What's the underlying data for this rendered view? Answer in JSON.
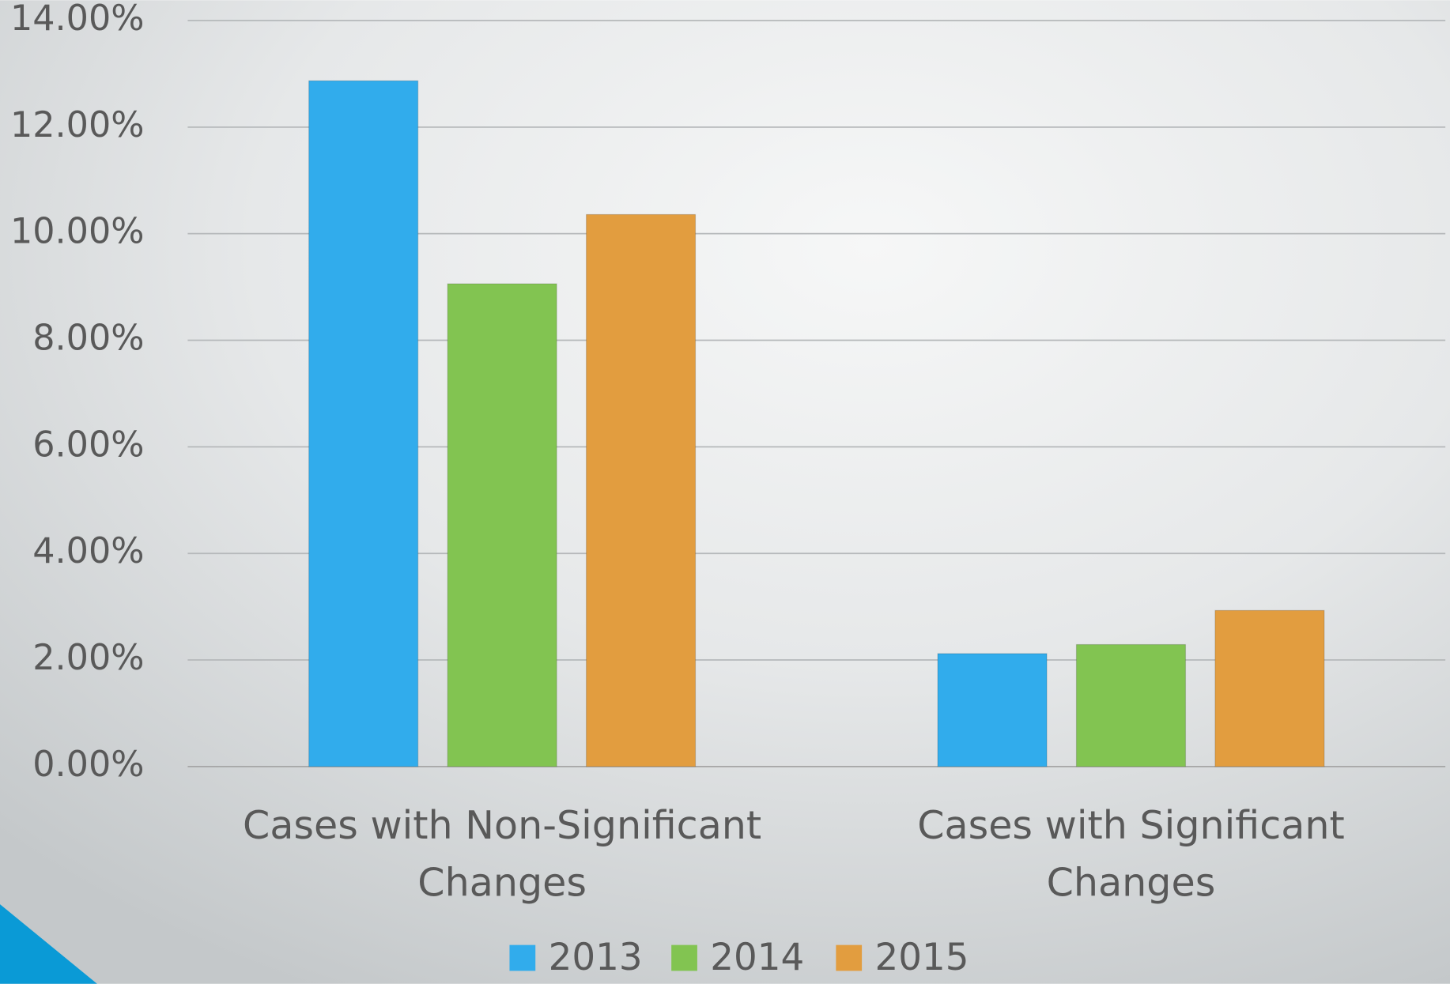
{
  "chart_data": {
    "type": "bar",
    "categories": [
      "Cases with Non-Significant Changes",
      "Cases with Significant Changes"
    ],
    "series": [
      {
        "name": "2013",
        "color": "#31acec",
        "values": [
          12.87,
          2.12
        ]
      },
      {
        "name": "2014",
        "color": "#82c451",
        "values": [
          9.06,
          2.29
        ]
      },
      {
        "name": "2015",
        "color": "#e29d3f",
        "values": [
          10.36,
          2.93
        ]
      }
    ],
    "ylim": [
      0,
      14
    ],
    "yticks": [
      {
        "value": 0,
        "label": "0.00%"
      },
      {
        "value": 2,
        "label": "2.00%"
      },
      {
        "value": 4,
        "label": "4.00%"
      },
      {
        "value": 6,
        "label": "6.00%"
      },
      {
        "value": 8,
        "label": "8.00%"
      },
      {
        "value": 10,
        "label": "10.00%"
      },
      {
        "value": 12,
        "label": "12.00%"
      },
      {
        "value": 14,
        "label": "14.00%"
      }
    ],
    "grid": true,
    "legend": "bottom"
  }
}
